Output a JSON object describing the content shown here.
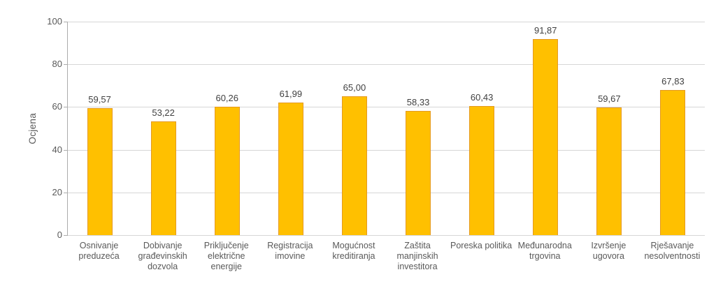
{
  "chart_data": {
    "type": "bar",
    "title": "",
    "xlabel": "",
    "ylabel": "Ocjena",
    "ylim": [
      0,
      100
    ],
    "yticks": [
      0,
      20,
      40,
      60,
      80,
      100
    ],
    "grid": true,
    "legend": false,
    "categories": [
      "Osnivanje preduzeća",
      "Dobivanje građevinskih dozvola",
      "Priključenje električne energije",
      "Registracija imovine",
      "Mogućnost kreditiranja",
      "Zaštita manjinskih investitora",
      "Poreska politika",
      "Međunarodna trgovina",
      "Izvršenje ugovora",
      "Rješavanje nesolventnosti"
    ],
    "category_lines": [
      [
        "Osnivanje",
        "preduzeća"
      ],
      [
        "Dobivanje",
        "građevinskih",
        "dozvola"
      ],
      [
        "Priključenje",
        "električne",
        "energije"
      ],
      [
        "Registracija",
        "imovine"
      ],
      [
        "Mogućnost",
        "kreditiranja"
      ],
      [
        "Zaštita",
        "manjinskih",
        "investitora"
      ],
      [
        "Poreska politika"
      ],
      [
        "Međunarodna",
        "trgovina"
      ],
      [
        "Izvršenje",
        "ugovora"
      ],
      [
        "Rješavanje",
        "nesolventnosti"
      ]
    ],
    "values": [
      59.57,
      53.22,
      60.26,
      61.99,
      65.0,
      58.33,
      60.43,
      91.87,
      59.67,
      67.83
    ],
    "value_labels": [
      "59,57",
      "53,22",
      "60,26",
      "61,99",
      "65,00",
      "58,33",
      "60,43",
      "91,87",
      "59,67",
      "67,83"
    ],
    "colors": {
      "bar_fill": "#FFC000",
      "bar_border": "#E59A20",
      "gridline": "#D6D6D6",
      "axis": "#ACACAC",
      "tick_label": "#595959",
      "value_label": "#404040",
      "background": "#FFFFFF"
    }
  }
}
